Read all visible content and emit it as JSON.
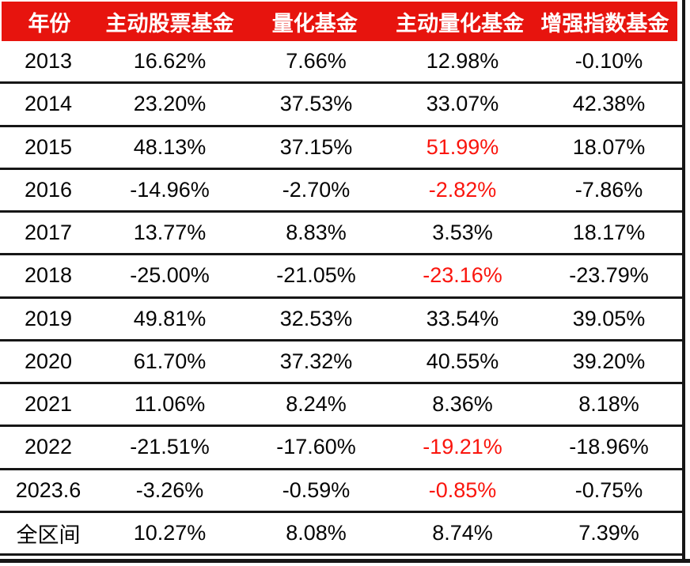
{
  "colors": {
    "header_bg": "#e7140e",
    "header_text": "#ffffff",
    "text": "#050505",
    "highlight": "#fa150d",
    "line": "#161616",
    "page_bg": "#ffffff"
  },
  "table": {
    "columns": [
      "年份",
      "主动股票基金",
      "量化基金",
      "主动量化基金",
      "增强指数基金"
    ],
    "rows": [
      {
        "year": "2013",
        "values": [
          "16.62%",
          "7.66%",
          "12.98%",
          "-0.10%"
        ],
        "red": []
      },
      {
        "year": "2014",
        "values": [
          "23.20%",
          "37.53%",
          "33.07%",
          "42.38%"
        ],
        "red": []
      },
      {
        "year": "2015",
        "values": [
          "48.13%",
          "37.15%",
          "51.99%",
          "18.07%"
        ],
        "red": [
          2
        ]
      },
      {
        "year": "2016",
        "values": [
          "-14.96%",
          "-2.70%",
          "-2.82%",
          "-7.86%"
        ],
        "red": [
          2
        ]
      },
      {
        "year": "2017",
        "values": [
          "13.77%",
          "8.83%",
          "3.53%",
          "18.17%"
        ],
        "red": []
      },
      {
        "year": "2018",
        "values": [
          "-25.00%",
          "-21.05%",
          "-23.16%",
          "-23.79%"
        ],
        "red": [
          2
        ]
      },
      {
        "year": "2019",
        "values": [
          "49.81%",
          "32.53%",
          "33.54%",
          "39.05%"
        ],
        "red": []
      },
      {
        "year": "2020",
        "values": [
          "61.70%",
          "37.32%",
          "40.55%",
          "39.20%"
        ],
        "red": []
      },
      {
        "year": "2021",
        "values": [
          "11.06%",
          "8.24%",
          "8.36%",
          "8.18%"
        ],
        "red": []
      },
      {
        "year": "2022",
        "values": [
          "-21.51%",
          "-17.60%",
          "-19.21%",
          "-18.96%"
        ],
        "red": [
          2
        ]
      },
      {
        "year": "2023.6",
        "values": [
          "-3.26%",
          "-0.59%",
          "-0.85%",
          "-0.75%"
        ],
        "red": [
          2
        ]
      },
      {
        "year": "全区间",
        "values": [
          "10.27%",
          "8.08%",
          "8.74%",
          "7.39%"
        ],
        "red": []
      }
    ]
  },
  "chart_data": {
    "type": "table",
    "title": "",
    "unit": "%",
    "columns": [
      "年份",
      "主动股票基金",
      "量化基金",
      "主动量化基金",
      "增强指数基金"
    ],
    "categories": [
      "2013",
      "2014",
      "2015",
      "2016",
      "2017",
      "2018",
      "2019",
      "2020",
      "2021",
      "2022",
      "2023.6",
      "全区间"
    ],
    "series": [
      {
        "name": "主动股票基金",
        "values": [
          16.62,
          23.2,
          48.13,
          -14.96,
          13.77,
          -25.0,
          49.81,
          61.7,
          11.06,
          -21.51,
          -3.26,
          10.27
        ]
      },
      {
        "name": "量化基金",
        "values": [
          7.66,
          37.53,
          37.15,
          -2.7,
          8.83,
          -21.05,
          32.53,
          37.32,
          8.24,
          -17.6,
          -0.59,
          8.08
        ]
      },
      {
        "name": "主动量化基金",
        "values": [
          12.98,
          33.07,
          51.99,
          -2.82,
          3.53,
          -23.16,
          33.54,
          40.55,
          8.36,
          -19.21,
          -0.85,
          8.74
        ]
      },
      {
        "name": "增强指数基金",
        "values": [
          -0.1,
          42.38,
          18.07,
          -7.86,
          18.17,
          -23.79,
          39.05,
          39.2,
          8.18,
          -18.96,
          -0.75,
          7.39
        ]
      }
    ],
    "highlight_red": {
      "column": "主动量化基金",
      "rows": [
        "2015",
        "2016",
        "2018",
        "2022",
        "2023.6"
      ]
    },
    "layout": {
      "header_fill": "#e7140e",
      "grid": "horizontal-rules",
      "legend": "none"
    }
  }
}
